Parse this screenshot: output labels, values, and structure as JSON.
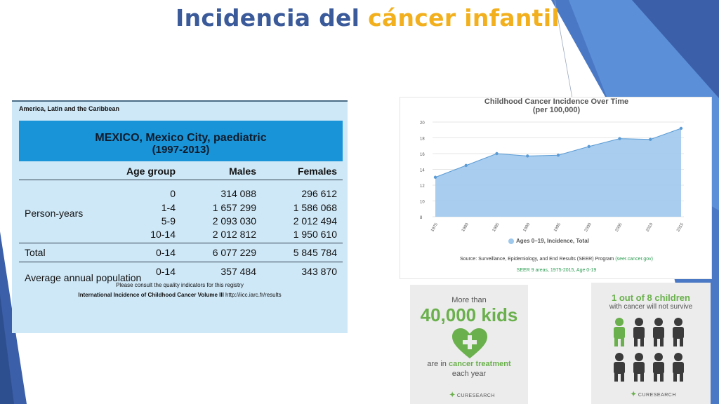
{
  "title": {
    "part1": "Incidencia del ",
    "part2": "cáncer infantil"
  },
  "table": {
    "region": "America, Latin and the Caribbean",
    "heading_line1": "MEXICO, Mexico City, paediatric",
    "heading_line2": "(1997-2013)",
    "columns": [
      "Age group",
      "Males",
      "Females"
    ],
    "person_years_label": "Person-years",
    "person_years": [
      {
        "age": "0",
        "males": "314 088",
        "females": "296 612"
      },
      {
        "age": "1-4",
        "males": "1 657 299",
        "females": "1 586 068"
      },
      {
        "age": "5-9",
        "males": "2 093 030",
        "females": "2 012 494"
      },
      {
        "age": "10-14",
        "males": "2 012 812",
        "females": "1 950 610"
      }
    ],
    "total": {
      "label": "Total",
      "age": "0-14",
      "males": "6 077 229",
      "females": "5 845 784"
    },
    "average": {
      "label": "Average annual population",
      "age": "0-14",
      "males": "357 484",
      "females": "343 870"
    },
    "note": "Please consult the quality indicators for this registry",
    "source_bold": "International Incidence of Childhood Cancer Volume III",
    "source_url": "http://iicc.iarc.fr/results"
  },
  "chart_data": {
    "type": "area",
    "title": "Childhood Cancer Incidence Over Time",
    "subtitle": "(per 100,000)",
    "x": [
      1975,
      1980,
      1985,
      1990,
      1995,
      2000,
      2005,
      2010,
      2015
    ],
    "x_tick_labels": [
      "1975",
      "1980",
      "1985",
      "1990",
      "1995",
      "2000",
      "2005",
      "2010",
      "2015"
    ],
    "y_ticks": [
      8,
      10,
      12,
      14,
      16,
      18,
      20
    ],
    "ylim": [
      8,
      20
    ],
    "series": [
      {
        "name": "Ages 0–19, Incidence, Total",
        "values": [
          13.0,
          14.5,
          16.0,
          15.7,
          15.8,
          16.9,
          17.9,
          17.8,
          19.2
        ]
      }
    ],
    "legend": "bottom",
    "colors": {
      "fill": "#9ec8ec",
      "line": "#5b9bd5",
      "point": "#5b9bd5"
    },
    "source": "Source: Surveillance, Epidemiology, and End Results (SEER) Program",
    "source_link": "(seer.cancer.gov)",
    "source_sub": "SEER 9 areas, 1975-2015, Age 0-19"
  },
  "card1": {
    "line1": "More than",
    "big": "40,000 kids",
    "line2a": "are in ",
    "line2b": "cancer treatment",
    "line3": "each year",
    "logo": "CURESEARCH",
    "icon": "heart-plus-icon"
  },
  "card2": {
    "line1": "1 out of 8 children",
    "line2": "with cancer will not survive",
    "children": 8,
    "highlighted": 1,
    "colors": {
      "highlight": "#6ab04c",
      "other": "#3b3b3b"
    },
    "logo": "CURESEARCH",
    "icon": "child-figure-icon"
  }
}
